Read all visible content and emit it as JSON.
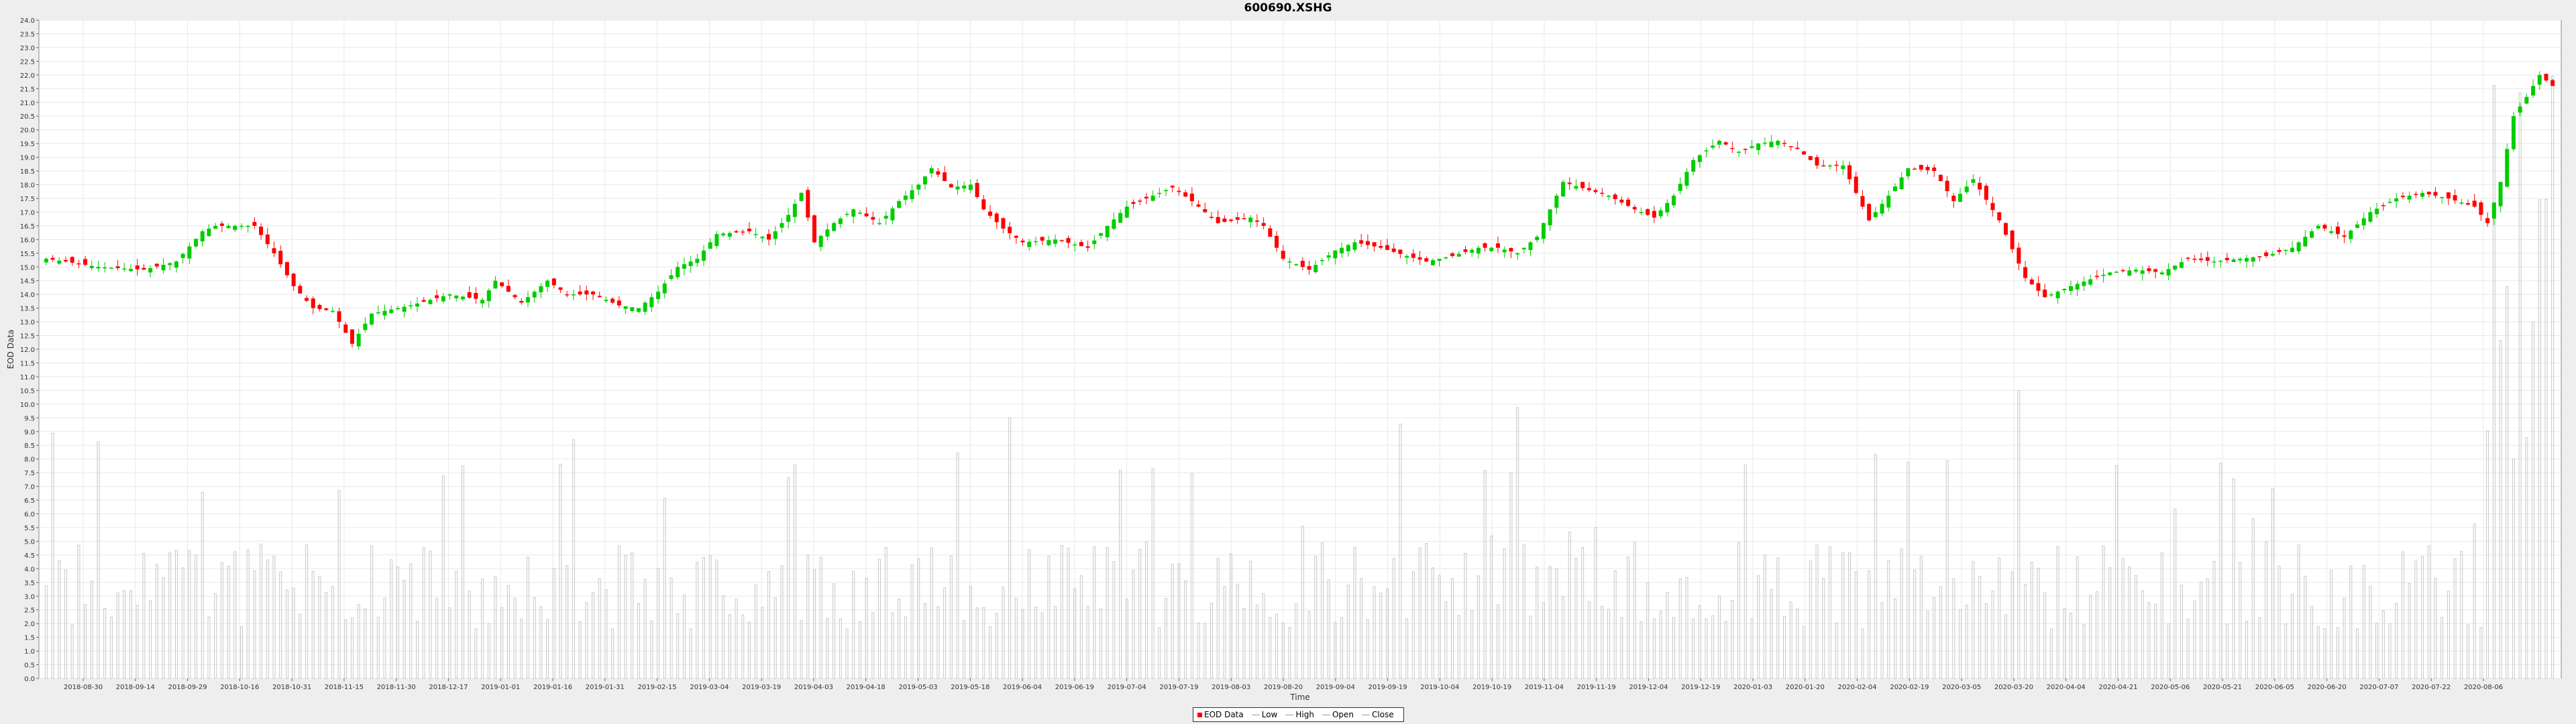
{
  "chart_data": {
    "type": "candlestick",
    "title": "600690.XSHG",
    "xlabel": "Time",
    "ylabel": "EOD Data",
    "ylim": [
      0,
      24
    ],
    "y_ticks": [
      "0.0",
      "0.5",
      "1.0",
      "1.5",
      "2.0",
      "2.5",
      "3.0",
      "3.5",
      "4.0",
      "4.5",
      "5.0",
      "5.5",
      "6.0",
      "6.5",
      "7.0",
      "7.5",
      "8.0",
      "8.5",
      "9.0",
      "9.5",
      "10.0",
      "10.5",
      "11.0",
      "11.5",
      "12.0",
      "12.5",
      "13.0",
      "13.5",
      "14.0",
      "14.5",
      "15.0",
      "15.5",
      "16.0",
      "16.5",
      "17.0",
      "17.5",
      "18.0",
      "18.5",
      "19.0",
      "19.5",
      "20.0",
      "20.5",
      "21.0",
      "21.5",
      "22.0",
      "22.5",
      "23.0",
      "23.5",
      "24.0"
    ],
    "x_ticks": [
      "2018-08-30",
      "2018-09-14",
      "2018-09-29",
      "2018-10-16",
      "2018-10-31",
      "2018-11-15",
      "2018-11-30",
      "2018-12-17",
      "2019-01-01",
      "2019-01-16",
      "2019-01-31",
      "2019-02-15",
      "2019-03-04",
      "2019-03-19",
      "2019-04-03",
      "2019-04-18",
      "2019-05-03",
      "2019-05-18",
      "2019-06-04",
      "2019-06-19",
      "2019-07-04",
      "2019-07-19",
      "2019-08-03",
      "2019-08-20",
      "2019-09-04",
      "2019-09-19",
      "2019-10-04",
      "2019-10-19",
      "2019-11-04",
      "2019-11-19",
      "2019-12-04",
      "2019-12-19",
      "2020-01-03",
      "2020-01-20",
      "2020-02-04",
      "2020-02-19",
      "2020-03-05",
      "2020-03-20",
      "2020-04-04",
      "2020-04-21",
      "2020-05-06",
      "2020-05-21",
      "2020-06-05",
      "2020-06-20",
      "2020-07-07",
      "2020-07-22",
      "2020-08-06"
    ],
    "close_path": [
      [
        0,
        15.3
      ],
      [
        3,
        15.2
      ],
      [
        8,
        15.0
      ],
      [
        15,
        14.9
      ],
      [
        20,
        15.2
      ],
      [
        24,
        16.3
      ],
      [
        26,
        16.5
      ],
      [
        30,
        16.5
      ],
      [
        32,
        16.5
      ],
      [
        35,
        15.5
      ],
      [
        38,
        14.3
      ],
      [
        41,
        13.5
      ],
      [
        44,
        13.4
      ],
      [
        47,
        12.2
      ],
      [
        50,
        13.3
      ],
      [
        56,
        13.6
      ],
      [
        62,
        14.0
      ],
      [
        67,
        13.8
      ],
      [
        69,
        14.5
      ],
      [
        73,
        13.7
      ],
      [
        77,
        14.5
      ],
      [
        80,
        14.0
      ],
      [
        84,
        14.0
      ],
      [
        88,
        13.6
      ],
      [
        91,
        13.5
      ],
      [
        94,
        14.1
      ],
      [
        97,
        15.0
      ],
      [
        100,
        15.3
      ],
      [
        103,
        16.2
      ],
      [
        108,
        16.3
      ],
      [
        111,
        16.0
      ],
      [
        114,
        16.9
      ],
      [
        116,
        17.7
      ],
      [
        118,
        15.9
      ],
      [
        121,
        16.6
      ],
      [
        124,
        17.1
      ],
      [
        128,
        16.6
      ],
      [
        131,
        17.4
      ],
      [
        134,
        18.0
      ],
      [
        136,
        18.6
      ],
      [
        139,
        17.9
      ],
      [
        142,
        18.0
      ],
      [
        144,
        17.1
      ],
      [
        147,
        16.4
      ],
      [
        150,
        15.9
      ],
      [
        155,
        16.0
      ],
      [
        160,
        15.7
      ],
      [
        163,
        16.5
      ],
      [
        166,
        17.2
      ],
      [
        170,
        17.6
      ],
      [
        173,
        17.9
      ],
      [
        176,
        17.4
      ],
      [
        180,
        16.6
      ],
      [
        185,
        16.8
      ],
      [
        187,
        16.5
      ],
      [
        190,
        15.3
      ],
      [
        194,
        14.9
      ],
      [
        198,
        15.6
      ],
      [
        201,
        15.9
      ],
      [
        205,
        15.7
      ],
      [
        209,
        15.4
      ],
      [
        212,
        15.2
      ],
      [
        216,
        15.4
      ],
      [
        220,
        15.7
      ],
      [
        223,
        15.7
      ],
      [
        226,
        15.5
      ],
      [
        229,
        16.1
      ],
      [
        231,
        17.1
      ],
      [
        233,
        18.1
      ],
      [
        237,
        17.8
      ],
      [
        240,
        17.6
      ],
      [
        244,
        17.1
      ],
      [
        247,
        16.8
      ],
      [
        250,
        17.6
      ],
      [
        253,
        18.9
      ],
      [
        257,
        19.6
      ],
      [
        260,
        19.2
      ],
      [
        263,
        19.5
      ],
      [
        266,
        19.6
      ],
      [
        269,
        19.3
      ],
      [
        272,
        18.7
      ],
      [
        276,
        18.7
      ],
      [
        280,
        16.7
      ],
      [
        283,
        17.6
      ],
      [
        286,
        18.6
      ],
      [
        290,
        18.5
      ],
      [
        293,
        17.4
      ],
      [
        296,
        18.2
      ],
      [
        300,
        16.7
      ],
      [
        304,
        14.6
      ],
      [
        307,
        13.9
      ],
      [
        311,
        14.3
      ],
      [
        317,
        14.8
      ],
      [
        321,
        14.9
      ],
      [
        325,
        14.8
      ],
      [
        329,
        15.3
      ],
      [
        333,
        15.2
      ],
      [
        337,
        15.3
      ],
      [
        341,
        15.4
      ],
      [
        345,
        15.7
      ],
      [
        349,
        16.5
      ],
      [
        353,
        16.1
      ],
      [
        357,
        17.0
      ],
      [
        361,
        17.5
      ],
      [
        365,
        17.7
      ],
      [
        369,
        17.5
      ],
      [
        373,
        17.2
      ],
      [
        375,
        16.6
      ],
      [
        377,
        18.1
      ],
      [
        379,
        20.5
      ],
      [
        381,
        21.2
      ],
      [
        383,
        22.0
      ],
      [
        385,
        21.6
      ]
    ],
    "volume_scale_max": 24.0
  },
  "legend": {
    "items": [
      "EOD Data",
      "Low",
      "High",
      "Open",
      "Close"
    ]
  },
  "colors": {
    "up": "#00cc00",
    "down": "#ff0000",
    "volume": "#c8c8c8",
    "grid": "#e8e8e8",
    "plot_bg": "#ffffff",
    "page_bg": "#eeeeee"
  }
}
